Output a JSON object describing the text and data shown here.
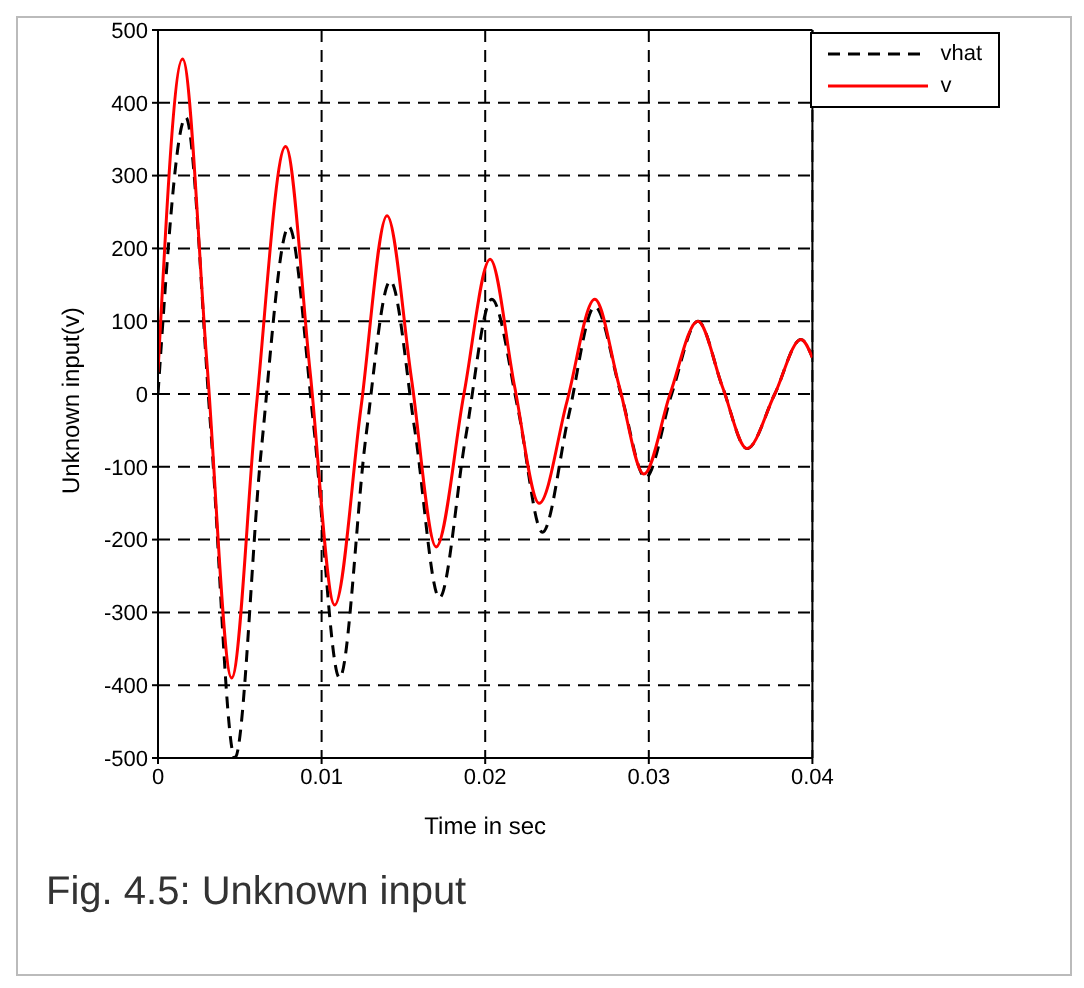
{
  "chart_data": {
    "type": "line",
    "xlabel": "Time in sec",
    "ylabel": "Unknown input(v)",
    "annotations": [
      "Fig. 4.5: Unknown input"
    ],
    "xlim": [
      0,
      0.04
    ],
    "xticks": [
      0,
      0.01,
      0.02,
      0.03,
      0.04
    ],
    "ylim": [
      -500,
      500
    ],
    "yticks": [
      -500,
      -400,
      -300,
      -200,
      -100,
      0,
      100,
      200,
      300,
      400,
      500
    ],
    "grid": true,
    "legend": "top right",
    "series": [
      {
        "name": "vhat",
        "color": "#000000",
        "line_style": "dashed",
        "x": [
          0,
          0.0017,
          0.0032,
          0.0047,
          0.0063,
          0.008,
          0.0095,
          0.0111,
          0.0127,
          0.0142,
          0.0157,
          0.0172,
          0.0188,
          0.0204,
          0.022,
          0.0235,
          0.0251,
          0.0267,
          0.0283,
          0.0298,
          0.0314,
          0.033,
          0.0345,
          0.036,
          0.0377,
          0.0393,
          0.04
        ],
        "values": [
          0,
          380,
          -40,
          -500,
          -80,
          230,
          -40,
          -390,
          -60,
          155,
          -50,
          -280,
          -60,
          130,
          -20,
          -190,
          -30,
          120,
          0,
          -115,
          0,
          100,
          10,
          -75,
          0,
          75,
          50
        ]
      },
      {
        "name": "v",
        "color": "#ff0000",
        "line_style": "solid",
        "x": [
          0,
          0.0015,
          0.003,
          0.0045,
          0.006,
          0.0078,
          0.0093,
          0.0108,
          0.0124,
          0.014,
          0.0155,
          0.017,
          0.0187,
          0.0203,
          0.0218,
          0.0233,
          0.025,
          0.0267,
          0.0282,
          0.0297,
          0.0313,
          0.033,
          0.0345,
          0.036,
          0.0377,
          0.0393,
          0.04
        ],
        "values": [
          30,
          460,
          40,
          -390,
          -20,
          340,
          30,
          -290,
          -20,
          245,
          20,
          -210,
          0,
          185,
          10,
          -150,
          -10,
          130,
          10,
          -110,
          0,
          100,
          10,
          -75,
          0,
          75,
          50
        ]
      }
    ]
  }
}
